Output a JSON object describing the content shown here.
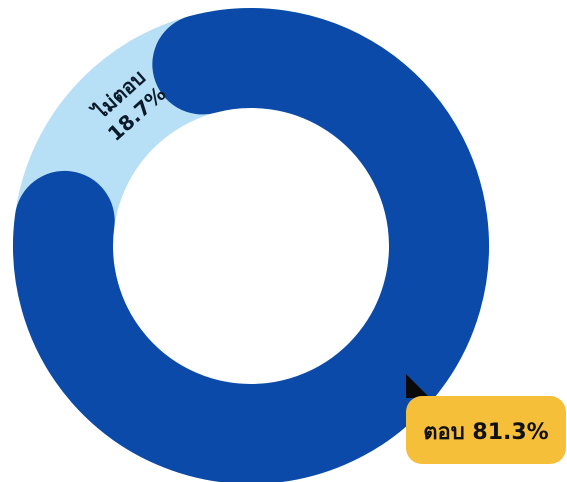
{
  "chart_data": {
    "type": "pie",
    "variant": "donut",
    "categories": [
      "ตอบ",
      "ไม่ตอบ"
    ],
    "values": [
      81.3,
      18.7
    ],
    "unit": "%",
    "colors": [
      "#0b4aa8",
      "#b7dff5"
    ],
    "labels": [
      {
        "category": "ตอบ",
        "text": "ตอบ 81.3%",
        "style": "callout"
      },
      {
        "line1": "ไม่ตอบ",
        "line2": "18.7%",
        "style": "on-arc"
      }
    ],
    "callout_color": "#f6bf3a",
    "pointer_color": "#0a0a0a"
  }
}
